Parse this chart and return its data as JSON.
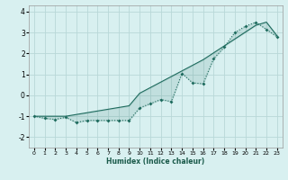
{
  "xlabel": "Humidex (Indice chaleur)",
  "background_color": "#d8f0f0",
  "grid_color": "#b8d8d8",
  "line_color": "#1e6b5e",
  "xlim": [
    -0.5,
    23.5
  ],
  "ylim": [
    -2.5,
    4.3
  ],
  "yticks": [
    -2,
    -1,
    0,
    1,
    2,
    3,
    4
  ],
  "xticks": [
    0,
    1,
    2,
    3,
    4,
    5,
    6,
    7,
    8,
    9,
    10,
    11,
    12,
    13,
    14,
    15,
    16,
    17,
    18,
    19,
    20,
    21,
    22,
    23
  ],
  "line1_x": [
    0,
    1,
    2,
    3,
    4,
    5,
    6,
    7,
    8,
    9,
    10,
    11,
    12,
    13,
    14,
    15,
    16,
    17,
    18,
    19,
    20,
    21,
    22,
    23
  ],
  "line1_y": [
    -1.0,
    -1.1,
    -1.15,
    -1.05,
    -1.3,
    -1.2,
    -1.2,
    -1.2,
    -1.2,
    -1.2,
    -0.6,
    -0.4,
    -0.2,
    -0.3,
    1.05,
    0.6,
    0.55,
    1.75,
    2.3,
    3.0,
    3.3,
    3.5,
    3.15,
    2.8
  ],
  "line2_x": [
    0,
    3,
    9,
    10,
    16,
    21,
    22,
    23
  ],
  "line2_y": [
    -1.0,
    -1.0,
    -0.5,
    0.1,
    1.7,
    3.35,
    3.5,
    2.85
  ]
}
